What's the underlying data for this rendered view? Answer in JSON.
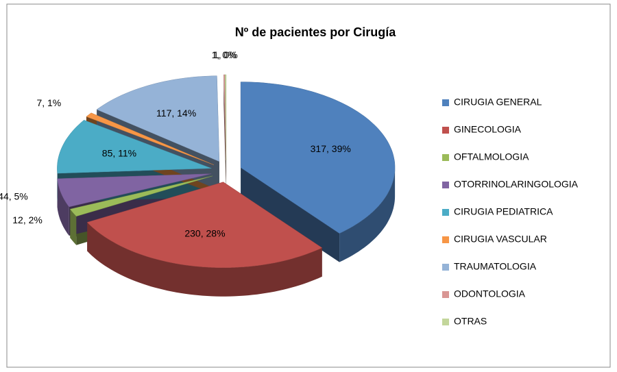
{
  "chart_data": {
    "type": "pie",
    "title": "Nº de pacientes  por Cirugía",
    "categories": [
      "CIRUGIA GENERAL",
      "GINECOLOGIA",
      "OFTALMOLOGIA",
      "OTORRINOLARINGOLOGIA",
      "CIRUGIA PEDIATRICA",
      "CIRUGIA VASCULAR",
      "TRAUMATOLOGIA",
      "ODONTOLOGIA",
      "OTRAS"
    ],
    "values": [
      317,
      230,
      12,
      44,
      85,
      7,
      117,
      1,
      1
    ],
    "value_labels": [
      "317, 39%",
      "230, 28%",
      "12, 2%",
      "44, 5%",
      "85, 11%",
      "7, 1%",
      "117, 14%",
      "1, 0%",
      "1, 0%"
    ],
    "colors": [
      "#4F81BD",
      "#C0504D",
      "#9BBB59",
      "#8064A2",
      "#4BACC6",
      "#F79646",
      "#95B3D7",
      "#D99694",
      "#C3D69B"
    ],
    "legend": "right"
  }
}
